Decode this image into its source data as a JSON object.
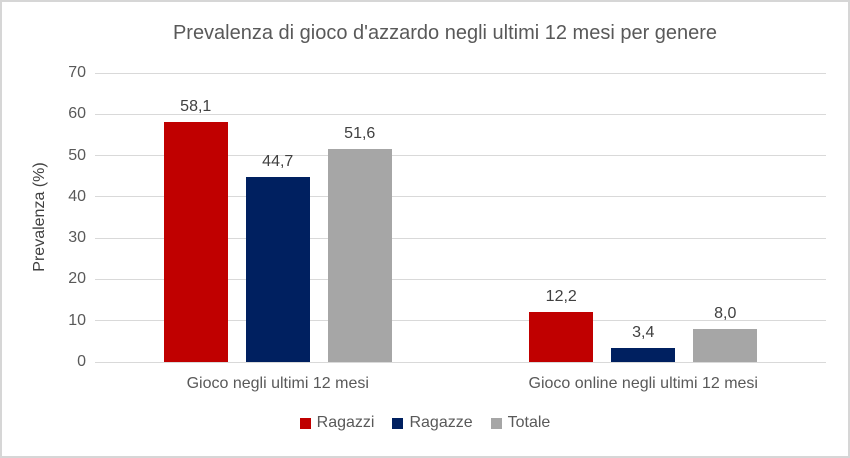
{
  "chart_data": {
    "type": "bar",
    "title": "Prevalenza di gioco d'azzardo negli ultimi 12 mesi per genere",
    "ylabel": "Prevalenza (%)",
    "xlabel": "",
    "categories": [
      "Gioco negli ultimi 12 mesi",
      "Gioco online negli ultimi 12 mesi"
    ],
    "series": [
      {
        "name": "Ragazzi",
        "color": "#c00000",
        "values": [
          58.1,
          12.2
        ]
      },
      {
        "name": "Ragazze",
        "color": "#002060",
        "values": [
          44.7,
          3.4
        ]
      },
      {
        "name": "Totale",
        "color": "#a6a6a6",
        "values": [
          51.6,
          8.0
        ]
      }
    ],
    "data_labels": [
      [
        "58,1",
        "12,2"
      ],
      [
        "44,7",
        "3,4"
      ],
      [
        "51,6",
        "8,0"
      ]
    ],
    "ylim": [
      0,
      70
    ],
    "yticks": [
      0,
      10,
      20,
      30,
      40,
      50,
      60,
      70
    ],
    "grid": true,
    "legend_position": "bottom",
    "decimal_separator": ","
  },
  "colors": {
    "text": "#595959",
    "data_label_text": "#404040",
    "gridline": "#d9d9d9",
    "border": "#d6d6d6",
    "background": "#ffffff"
  }
}
